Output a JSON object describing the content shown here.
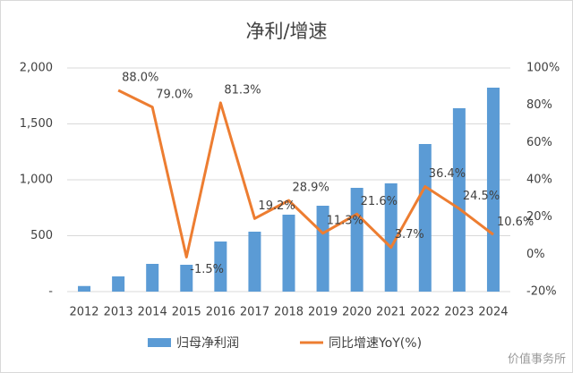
{
  "chart_data": {
    "type": "bar",
    "title": "净利/增速",
    "categories": [
      "2012",
      "2013",
      "2014",
      "2015",
      "2016",
      "2017",
      "2018",
      "2019",
      "2020",
      "2021",
      "2022",
      "2023",
      "2024"
    ],
    "series": [
      {
        "name": "归母净利润",
        "type": "bar",
        "color": "#5b9bd5",
        "values": [
          50,
          136,
          248,
          240,
          448,
          536,
          688,
          768,
          928,
          968,
          1320,
          1640,
          1824
        ]
      },
      {
        "name": "同比增速YoY(%)",
        "type": "line",
        "axis": "y2",
        "color": "#ed7d31",
        "values": [
          null,
          88.0,
          79.0,
          -1.5,
          81.3,
          19.2,
          28.9,
          11.3,
          21.6,
          3.7,
          36.4,
          24.5,
          10.6
        ],
        "value_labels": [
          null,
          "88.0%",
          "79.0%",
          "-1.5%",
          "81.3%",
          "19.2%",
          "28.9%",
          "11.3%",
          "21.6%",
          "3.7%",
          "36.4%",
          "24.5%",
          "10.6%"
        ]
      }
    ],
    "ylim": [
      0,
      2000
    ],
    "yticks": [
      {
        "value": 0,
        "label": "-"
      },
      500,
      {
        "value": 1000,
        "label": "1,000"
      },
      {
        "value": 1500,
        "label": "1,500"
      },
      {
        "value": 2000,
        "label": "2,000"
      }
    ],
    "y2lim": [
      -20,
      100
    ],
    "y2ticks": [
      {
        "value": -20,
        "label": "-20%"
      },
      {
        "value": 0,
        "label": "0%"
      },
      {
        "value": 20,
        "label": "20%"
      },
      {
        "value": 40,
        "label": "40%"
      },
      {
        "value": 60,
        "label": "60%"
      },
      {
        "value": 80,
        "label": "80%"
      },
      {
        "value": 100,
        "label": "100%"
      }
    ],
    "grid": true,
    "legend": "bottom"
  },
  "watermark": "价值事务所"
}
